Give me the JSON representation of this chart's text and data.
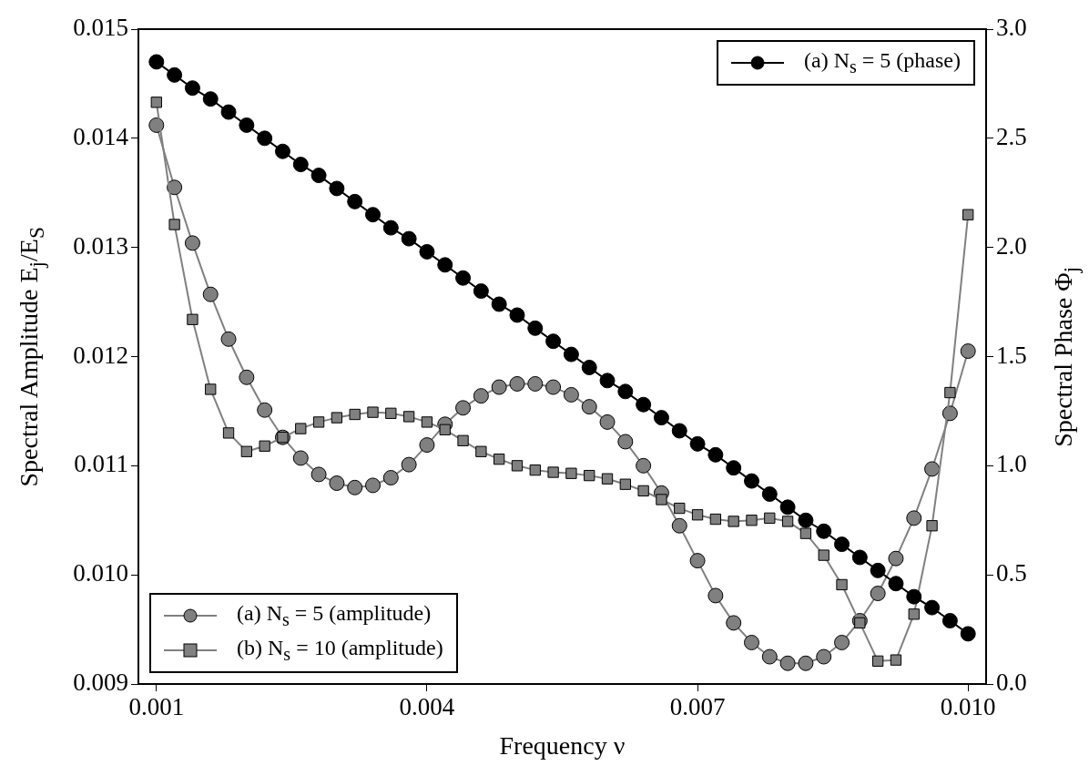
{
  "chart_data": {
    "type": "line",
    "xlabel": "Frequency ν",
    "ylabel": "Spectral Amplitude E$_{j}$/E$_{S}$",
    "y2label": "Spectral Phase Φ$_{j}$",
    "x": [
      0.001,
      0.0012,
      0.0014,
      0.0016,
      0.0018,
      0.002,
      0.0022,
      0.0024,
      0.0026,
      0.0028,
      0.003,
      0.0032,
      0.0034,
      0.0036,
      0.0038,
      0.004,
      0.0042,
      0.0044,
      0.0046,
      0.0048,
      0.005,
      0.0052,
      0.0054,
      0.0056,
      0.0058,
      0.006,
      0.0062,
      0.0064,
      0.0066,
      0.0068,
      0.007,
      0.0072,
      0.0074,
      0.0076,
      0.0078,
      0.008,
      0.0082,
      0.0084,
      0.0086,
      0.0088,
      0.009,
      0.0092,
      0.0094,
      0.0096,
      0.0098,
      0.01
    ],
    "series": [
      {
        "name": "(a) N$_{s}$ = 5 (phase)",
        "color": "#000000",
        "axis": "y2",
        "marker": "circle",
        "values": [
          2.85,
          2.79,
          2.73,
          2.68,
          2.62,
          2.56,
          2.5,
          2.44,
          2.38,
          2.33,
          2.27,
          2.21,
          2.15,
          2.09,
          2.04,
          1.98,
          1.92,
          1.86,
          1.8,
          1.74,
          1.69,
          1.63,
          1.57,
          1.51,
          1.45,
          1.39,
          1.34,
          1.28,
          1.22,
          1.16,
          1.1,
          1.05,
          0.99,
          0.93,
          0.87,
          0.81,
          0.75,
          0.7,
          0.64,
          0.58,
          0.52,
          0.46,
          0.4,
          0.35,
          0.29,
          0.23
        ]
      },
      {
        "name": "(a) N$_{s}$ = 5 (amplitude)",
        "color": "#808080",
        "marker": "circle",
        "values": [
          0.01412,
          0.01355,
          0.01304,
          0.01257,
          0.01216,
          0.01181,
          0.01151,
          0.01126,
          0.01107,
          0.01092,
          0.01084,
          0.0108,
          0.01082,
          0.01089,
          0.01101,
          0.01119,
          0.01138,
          0.01153,
          0.01164,
          0.01172,
          0.01175,
          0.01175,
          0.01172,
          0.01165,
          0.01154,
          0.0114,
          0.01122,
          0.011,
          0.01075,
          0.01045,
          0.01013,
          0.00981,
          0.00956,
          0.00938,
          0.00925,
          0.00919,
          0.00919,
          0.00925,
          0.00938,
          0.00958,
          0.00983,
          0.01015,
          0.01052,
          0.01097,
          0.01148,
          0.01205
        ]
      },
      {
        "name": "(b) N$_{s}$ = 10 (amplitude)",
        "color": "#808080",
        "marker": "square",
        "values": [
          0.01433,
          0.01321,
          0.01234,
          0.0117,
          0.0113,
          0.01113,
          0.01118,
          0.01126,
          0.01134,
          0.0114,
          0.01144,
          0.01147,
          0.01149,
          0.01148,
          0.01145,
          0.0114,
          0.01133,
          0.01123,
          0.01113,
          0.01106,
          0.011,
          0.01096,
          0.01094,
          0.01093,
          0.01091,
          0.01088,
          0.01083,
          0.01077,
          0.01069,
          0.01061,
          0.01055,
          0.01051,
          0.01049,
          0.0105,
          0.01052,
          0.01049,
          0.01038,
          0.01018,
          0.00991,
          0.00956,
          0.00921,
          0.00922,
          0.00964,
          0.01045,
          0.01167,
          0.0133
        ]
      }
    ],
    "xlim": [
      0.0008,
      0.0102
    ],
    "xticks": [
      {
        "value": 0.001,
        "label": "0.001"
      },
      {
        "value": 0.004,
        "label": "0.004"
      },
      {
        "value": 0.007,
        "label": "0.007"
      },
      {
        "value": 0.01,
        "label": "0.010"
      }
    ],
    "ylim": [
      0.009,
      0.015
    ],
    "yticks": [
      {
        "value": 0.009,
        "label": "0.009"
      },
      {
        "value": 0.01,
        "label": "0.010"
      },
      {
        "value": 0.011,
        "label": "0.011"
      },
      {
        "value": 0.012,
        "label": "0.012"
      },
      {
        "value": 0.013,
        "label": "0.013"
      },
      {
        "value": 0.014,
        "label": "0.014"
      },
      {
        "value": 0.015,
        "label": "0.015"
      }
    ],
    "y2lim": [
      0,
      3
    ],
    "y2ticks": [
      {
        "value": 0,
        "label": "0.0"
      },
      {
        "value": 0.5,
        "label": "0.5"
      },
      {
        "value": 1,
        "label": "1.0"
      },
      {
        "value": 1.5,
        "label": "1.5"
      },
      {
        "value": 2,
        "label": "2.0"
      },
      {
        "value": 2.5,
        "label": "2.5"
      },
      {
        "value": 3,
        "label": "3.0"
      }
    ],
    "grid": false,
    "legend": "bottom left",
    "line_style": "solid"
  }
}
